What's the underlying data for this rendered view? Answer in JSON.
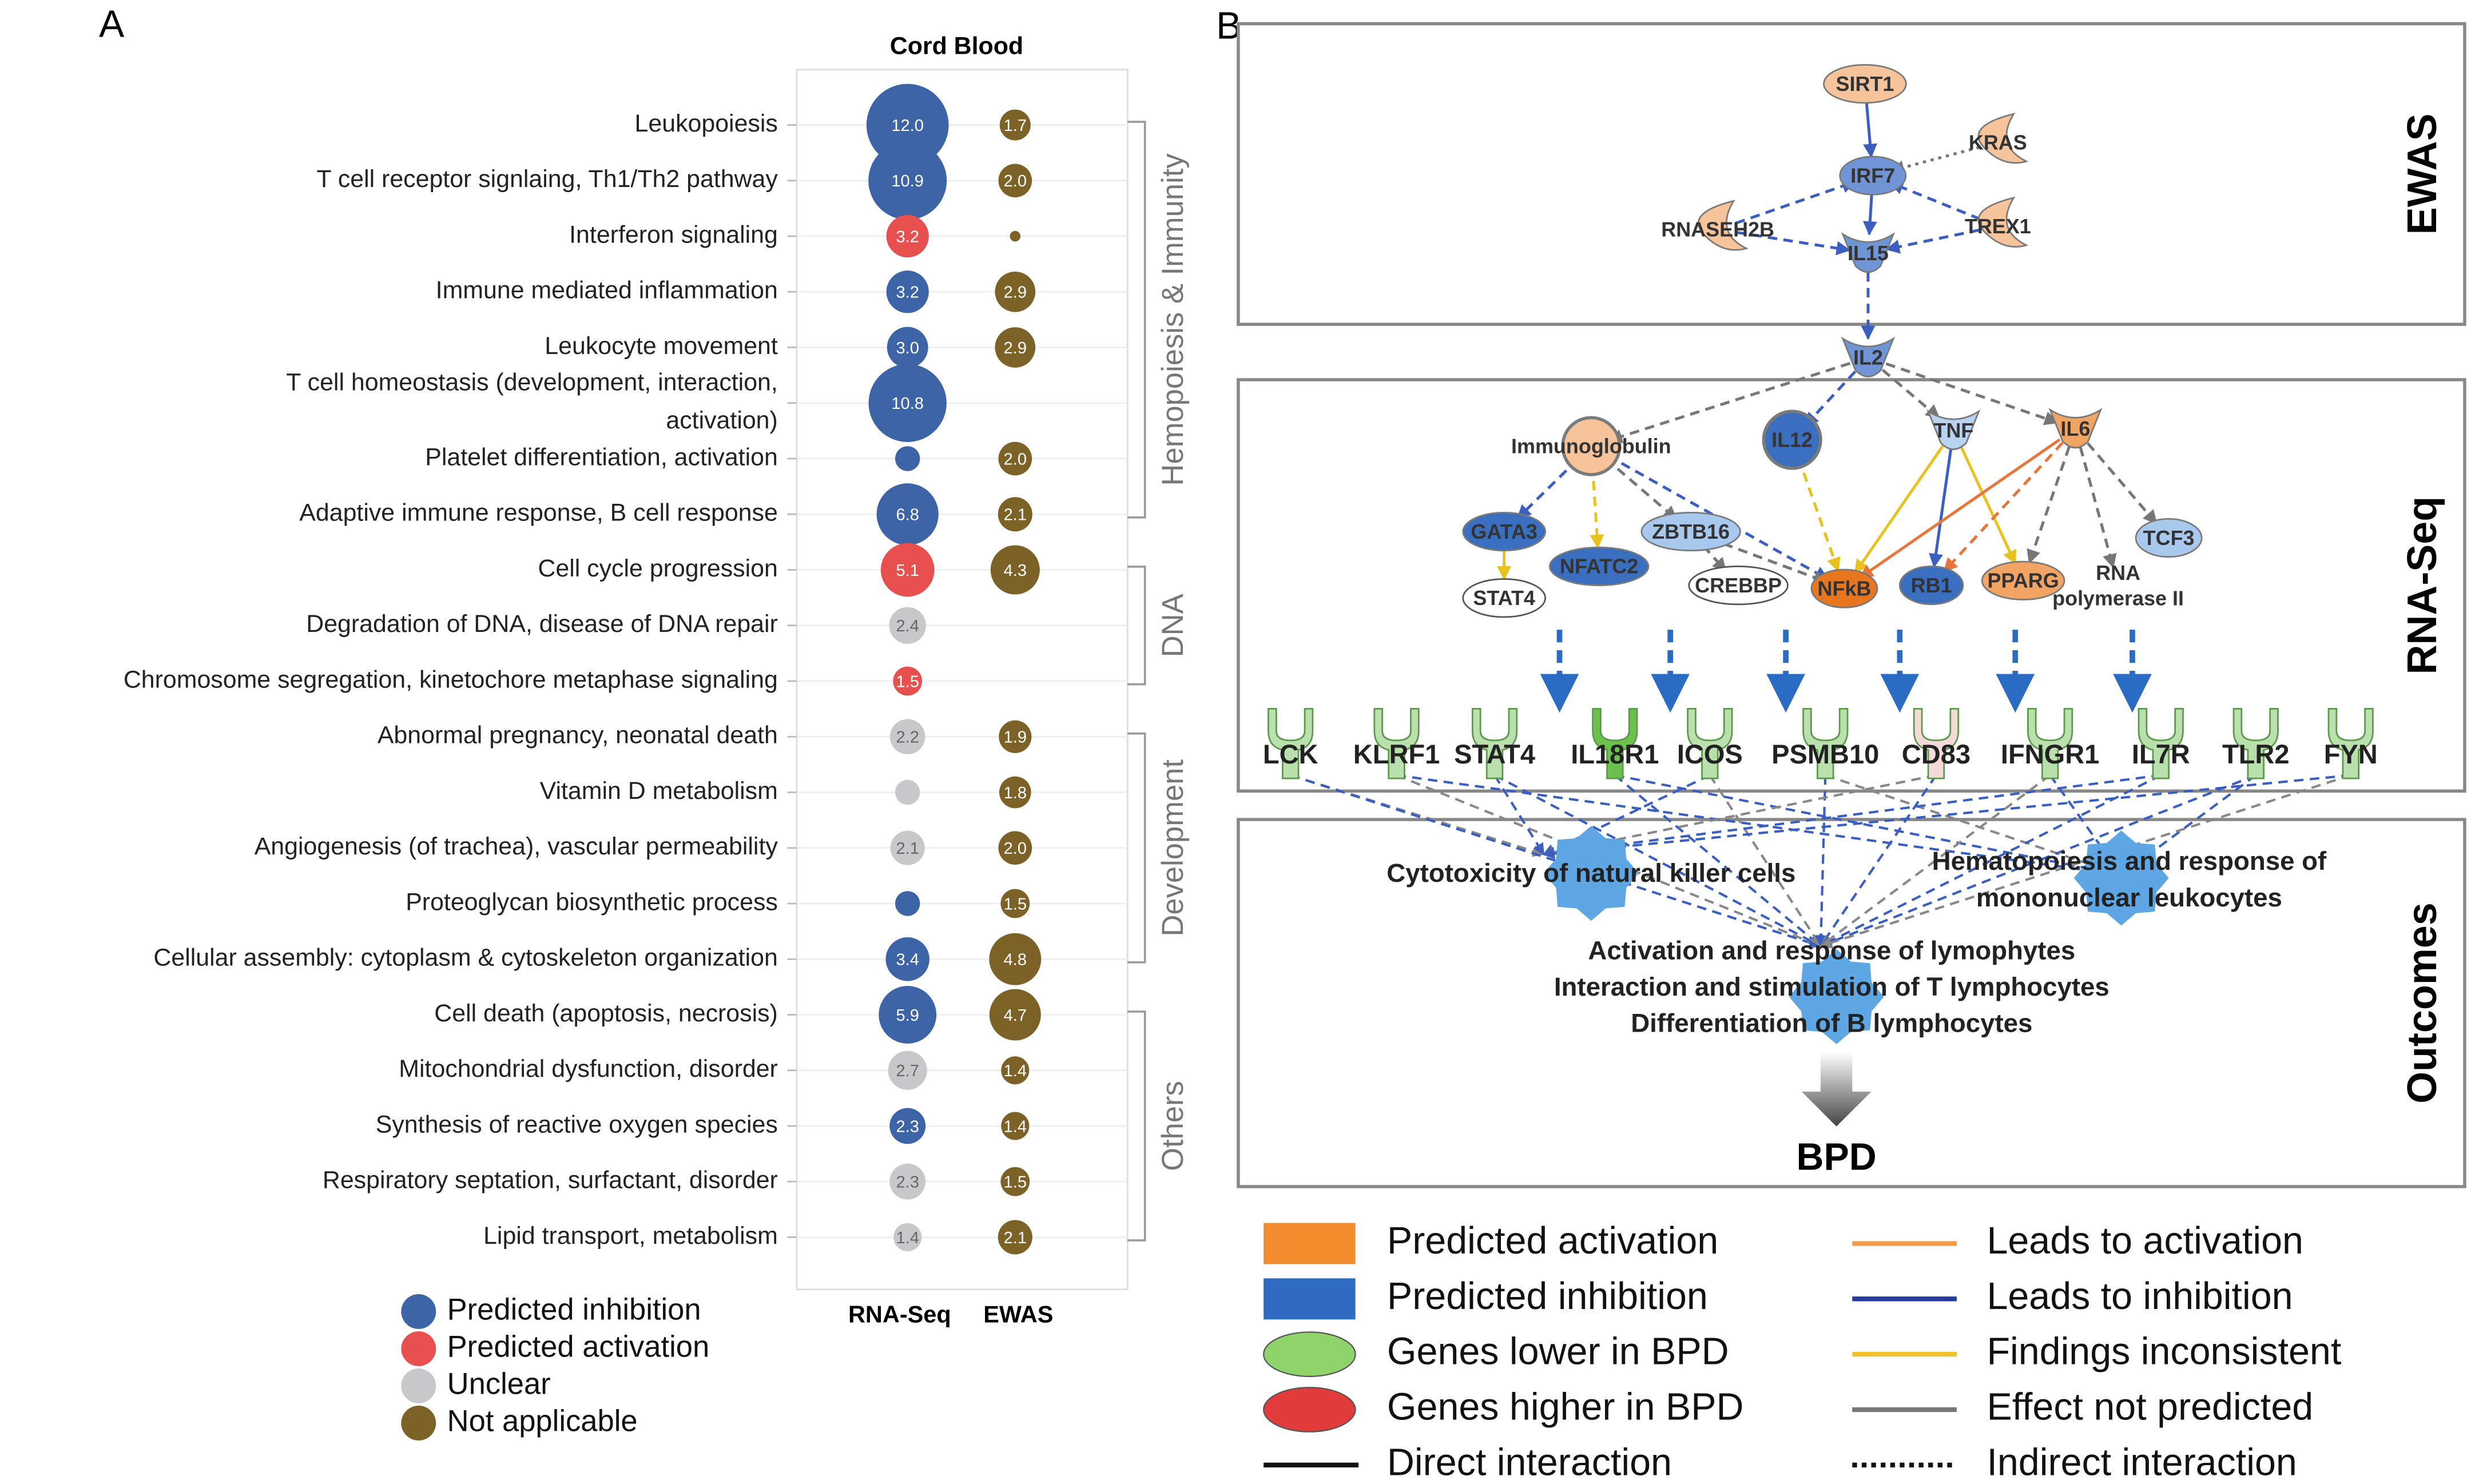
{
  "chart_data": {
    "type": "bubble",
    "panel_label": "A",
    "title": "Cord Blood",
    "categories": [
      "Leukopoiesis",
      "T cell receptor signlaing, Th1/Th2 pathway",
      "Interferon signaling",
      "Immune mediated inflammation",
      "Leukocyte movement",
      "T cell homeostasis (development, interaction,\nactivation)",
      "Platelet differentiation, activation",
      "Adaptive immune response, B cell response",
      "Cell cycle progression",
      "Degradation of DNA, disease of DNA repair",
      "Chromosome segregation, kinetochore metaphase signaling",
      "Abnormal pregnancy, neonatal death",
      "Vitamin D metabolism",
      "Angiogenesis (of trachea), vascular permeability",
      "Proteoglycan biosynthetic process",
      "Cellular assembly: cytoplasm & cytoskeleton organization",
      "Cell death (apoptosis, necrosis)",
      "Mitochondrial dysfunction, disorder",
      "Synthesis of reactive oxygen species",
      "Respiratory septation, surfactant, disorder",
      "Lipid transport, metabolism"
    ],
    "series": [
      {
        "name": "RNA-Seq",
        "values": [
          12.0,
          10.9,
          3.2,
          3.2,
          3.0,
          10.8,
          1.1,
          6.8,
          5.1,
          2.4,
          1.5,
          2.2,
          1.1,
          2.1,
          1.1,
          3.4,
          5.9,
          2.7,
          2.3,
          2.3,
          1.4
        ],
        "value_labels": [
          "12.0",
          "10.9",
          "3.2",
          "3.2",
          "3.0",
          "10.8",
          null,
          "6.8",
          "5.1",
          "2.4",
          "1.5",
          "2.2",
          null,
          "2.1",
          null,
          "3.4",
          "5.9",
          "2.7",
          "2.3",
          "2.3",
          "1.4"
        ],
        "point_colors": [
          "#3d64a6",
          "#3d64a6",
          "#e85050",
          "#3d64a6",
          "#3d64a6",
          "#3d64a6",
          "#3d64a6",
          "#3d64a6",
          "#e85050",
          "#c8c8cc",
          "#e85050",
          "#c8c8cc",
          "#c8c8cc",
          "#c8c8cc",
          "#3d64a6",
          "#3d64a6",
          "#3d64a6",
          "#c8c8cc",
          "#3d64a6",
          "#c8c8cc",
          "#c8c8cc"
        ]
      },
      {
        "name": "EWAS",
        "color": "#7d6228",
        "values": [
          1.7,
          2.0,
          0.2,
          2.9,
          2.9,
          null,
          2.0,
          2.1,
          4.3,
          null,
          null,
          1.9,
          1.8,
          2.0,
          1.5,
          4.8,
          4.7,
          1.4,
          1.4,
          1.5,
          2.1
        ],
        "value_labels": [
          "1.7",
          "2.0",
          null,
          "2.9",
          "2.9",
          null,
          "2.0",
          "2.1",
          "4.3",
          null,
          null,
          "1.9",
          "1.8",
          "2.0",
          "1.5",
          "4.8",
          "4.7",
          "1.4",
          "1.4",
          "1.5",
          "2.1"
        ]
      }
    ],
    "groups": [
      {
        "name": "Hemopoiesis & Immunity",
        "span": [
          0,
          7
        ]
      },
      {
        "name": "DNA",
        "span": [
          8,
          10
        ]
      },
      {
        "name": "Development",
        "span": [
          11,
          15
        ]
      },
      {
        "name": "Others",
        "span": [
          16,
          20
        ]
      }
    ],
    "legend": [
      {
        "name": "Predicted inhibition",
        "color": "#3d64a6"
      },
      {
        "name": "Predicted activation",
        "color": "#e85050"
      },
      {
        "name": "Unclear",
        "color": "#c8c8cc"
      },
      {
        "name": "Not applicable",
        "color": "#7d6228"
      }
    ]
  },
  "diagram": {
    "panel_label": "B",
    "sections": [
      "EWAS",
      "RNA-Seq",
      "Outcomes"
    ],
    "nodes": [
      {
        "label": "SIRT1",
        "color": "#f6c39a",
        "shape": "ellipse"
      },
      {
        "label": "KRAS",
        "color": "#f6c39a",
        "shape": "crescent"
      },
      {
        "label": "IRF7",
        "color": "#6f95d6",
        "shape": "ellipse"
      },
      {
        "label": "RNASEH2B",
        "color": "#f6c39a",
        "shape": "crescent"
      },
      {
        "label": "TREX1",
        "color": "#f6c39a",
        "shape": "crescent"
      },
      {
        "label": "IL15",
        "color": "#6f95d6",
        "shape": "v"
      },
      {
        "label": "IL2",
        "color": "#6f95d6",
        "shape": "v"
      },
      {
        "label": "Immunoglobulin",
        "color": "#f6c39a",
        "shape": "circle"
      },
      {
        "label": "IL12",
        "color": "#3a6fbf",
        "shape": "circle"
      },
      {
        "label": "TNF",
        "color": "#b8d2f0",
        "shape": "v"
      },
      {
        "label": "IL6",
        "color": "#f2a464",
        "shape": "v"
      },
      {
        "label": "GATA3",
        "color": "#3a6fbf",
        "shape": "ellipse"
      },
      {
        "label": "ZBTB16",
        "color": "#a9c8ee",
        "shape": "ellipse"
      },
      {
        "label": "TCF3",
        "color": "#a9c8ee",
        "shape": "ellipse"
      },
      {
        "label": "STAT4",
        "color": "#ffffff",
        "shape": "ellipse"
      },
      {
        "label": "NFATC2",
        "color": "#3a6fbf",
        "shape": "ellipse"
      },
      {
        "label": "CREBBP",
        "color": "#ffffff",
        "shape": "ellipse"
      },
      {
        "label": "NFkB",
        "color": "#e8761e",
        "shape": "ellipse"
      },
      {
        "label": "RB1",
        "color": "#3a6fbf",
        "shape": "ellipse"
      },
      {
        "label": "PPARG",
        "color": "#f2a464",
        "shape": "ellipse"
      },
      {
        "label": "RNA\npolymerase II",
        "color": "#ffffff",
        "shape": "none"
      }
    ],
    "genes": [
      {
        "label": "LCK",
        "color": "#b9e0ad"
      },
      {
        "label": "KLRF1",
        "color": "#b9e0ad"
      },
      {
        "label": "STAT4",
        "color": "#b9e0ad"
      },
      {
        "label": "IL18R1",
        "color": "#6cc14e"
      },
      {
        "label": "ICOS",
        "color": "#b9e0ad"
      },
      {
        "label": "PSMB10",
        "color": "#b9e0ad"
      },
      {
        "label": "CD83",
        "color": "#f6d9d9"
      },
      {
        "label": "IFNGR1",
        "color": "#b9e0ad"
      },
      {
        "label": "IL7R",
        "color": "#b9e0ad"
      },
      {
        "label": "TLR2",
        "color": "#b9e0ad"
      },
      {
        "label": "FYN",
        "color": "#b9e0ad"
      }
    ],
    "outcomes": [
      "Cytotoxicity of natural killer cells",
      "Hematopoiesis and response of\nmononuclear leukocytes",
      "Activation and response of lymophytes\nInteraction and stimulation of T lymphocytes\nDifferentiation of B lymphocytes"
    ],
    "result": "BPD",
    "legend_nodes": [
      {
        "label": "Predicted activation",
        "color": "#f28a2e",
        "shape": "rect"
      },
      {
        "label": "Predicted inhibition",
        "color": "#2f6bc0",
        "shape": "rect"
      },
      {
        "label": "Genes lower in BPD",
        "color": "#8fd46a",
        "shape": "ellipse"
      },
      {
        "label": "Genes higher in BPD",
        "color": "#e23b3b",
        "shape": "ellipse"
      },
      {
        "label": "Direct interaction",
        "color": "#111111",
        "shape": "line"
      }
    ],
    "legend_edges": [
      {
        "label": "Leads to activation",
        "color": "#f29a48",
        "style": "solid"
      },
      {
        "label": "Leads to inhibition",
        "color": "#26399a",
        "style": "solid"
      },
      {
        "label": "Findings inconsistent",
        "color": "#f2c12e",
        "style": "solid"
      },
      {
        "label": "Effect not predicted",
        "color": "#777777",
        "style": "solid"
      },
      {
        "label": "Indirect interaction",
        "color": "#111111",
        "style": "dotted"
      }
    ]
  }
}
